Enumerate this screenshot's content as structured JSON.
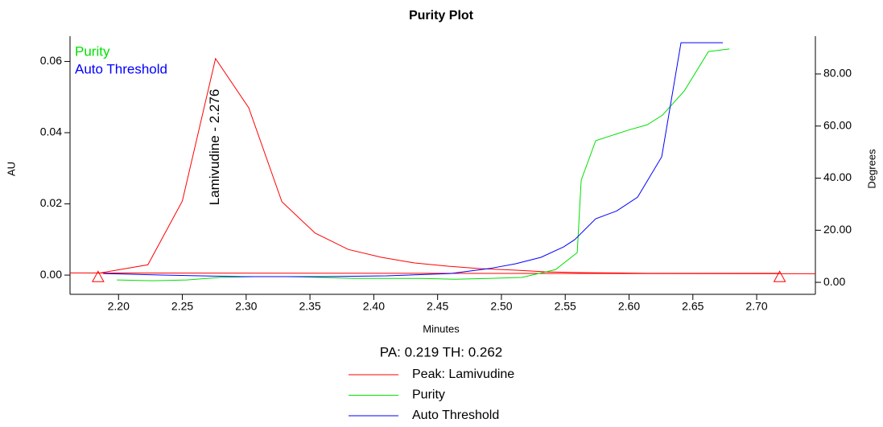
{
  "chart_data": {
    "type": "line",
    "title": "Purity Plot",
    "x_label": "Minutes",
    "y_label": "AU",
    "y2_label": "Degrees",
    "xlim": [
      2.162,
      2.746
    ],
    "ylim": [
      -0.0054,
      0.0671
    ],
    "y2lim": [
      -4.6,
      94.5
    ],
    "xticks": [
      {
        "value": 2.2,
        "label": "2.20"
      },
      {
        "value": 2.25,
        "label": "2.25"
      },
      {
        "value": 2.3,
        "label": "2.30"
      },
      {
        "value": 2.35,
        "label": "2.35"
      },
      {
        "value": 2.4,
        "label": "2.40"
      },
      {
        "value": 2.45,
        "label": "2.45"
      },
      {
        "value": 2.5,
        "label": "2.50"
      },
      {
        "value": 2.55,
        "label": "2.55"
      },
      {
        "value": 2.6,
        "label": "2.60"
      },
      {
        "value": 2.65,
        "label": "2.65"
      },
      {
        "value": 2.7,
        "label": "2.70"
      }
    ],
    "yticks": [
      {
        "value": 0,
        "label": "0.00"
      },
      {
        "value": 0.02,
        "label": "0.02"
      },
      {
        "value": 0.04,
        "label": "0.04"
      },
      {
        "value": 0.06,
        "label": "0.06"
      }
    ],
    "y2ticks": [
      {
        "value": 0,
        "label": "0.00"
      },
      {
        "value": 20,
        "label": "20.00"
      },
      {
        "value": 40,
        "label": "40.00"
      },
      {
        "value": 60,
        "label": "60.00"
      },
      {
        "value": 80,
        "label": "80.00"
      }
    ],
    "summary": "PA:  0.219  TH:  0.262",
    "annotation": "Lamivudine - 2.276",
    "annotation_x": 2.276,
    "baseline": {
      "x": [
        2.162,
        2.746
      ],
      "values": [
        0.0006,
        0.0004
      ],
      "color": "#ff0000"
    },
    "peak_markers": {
      "x": [
        2.184,
        2.718
      ],
      "values": [
        -0.0005,
        -0.0005
      ],
      "color": "#ff0000"
    },
    "series": [
      {
        "name": "Peak: Lamivudine",
        "color": "#ff0000",
        "x": [
          2.184,
          2.223,
          2.25,
          2.276,
          2.302,
          2.328,
          2.354,
          2.38,
          2.406,
          2.432,
          2.458,
          2.484,
          2.51,
          2.536,
          2.562,
          2.588,
          2.614,
          2.64,
          2.666,
          2.692,
          2.718
        ],
        "values": [
          0.0005,
          0.0029,
          0.0208,
          0.0608,
          0.047,
          0.0206,
          0.0118,
          0.0072,
          0.005,
          0.0034,
          0.0025,
          0.0018,
          0.0014,
          0.0009,
          0.0007,
          0.0006,
          0.0005,
          0.0005,
          0.0005,
          0.0005,
          0.0005
        ]
      },
      {
        "name": "Purity",
        "color": "#00e000",
        "axis": "y2",
        "x": [
          2.1987,
          2.2271,
          2.2536,
          2.2801,
          2.3066,
          2.3324,
          2.3589,
          2.3847,
          2.4112,
          2.4377,
          2.4636,
          2.49,
          2.5159,
          2.5424,
          2.5594,
          2.5625,
          2.5739,
          2.5991,
          2.6143,
          2.6262,
          2.6433,
          2.6622,
          2.6786
        ],
        "values": [
          0.9,
          0.6,
          0.9,
          1.9,
          2.2,
          2.2,
          1.9,
          1.5,
          1.5,
          1.5,
          1.2,
          1.5,
          1.9,
          4.9,
          11.4,
          39.2,
          54.4,
          58.4,
          60.5,
          64.2,
          73.5,
          88.6,
          89.6
        ]
      },
      {
        "name": "Auto Threshold",
        "color": "#0000ff",
        "axis": "y2",
        "x": [
          2.188,
          2.2334,
          2.2965,
          2.3595,
          2.41,
          2.4604,
          2.4907,
          2.5108,
          2.531,
          2.5487,
          2.5575,
          2.5739,
          2.5903,
          2.6067,
          2.6256,
          2.6407,
          2.6735
        ],
        "values": [
          3.4,
          2.8,
          2.2,
          2.2,
          2.5,
          3.4,
          5.3,
          7.1,
          9.6,
          13.6,
          16.4,
          24.4,
          27.4,
          32.7,
          48.2,
          92.0,
          92.0
        ]
      }
    ]
  }
}
